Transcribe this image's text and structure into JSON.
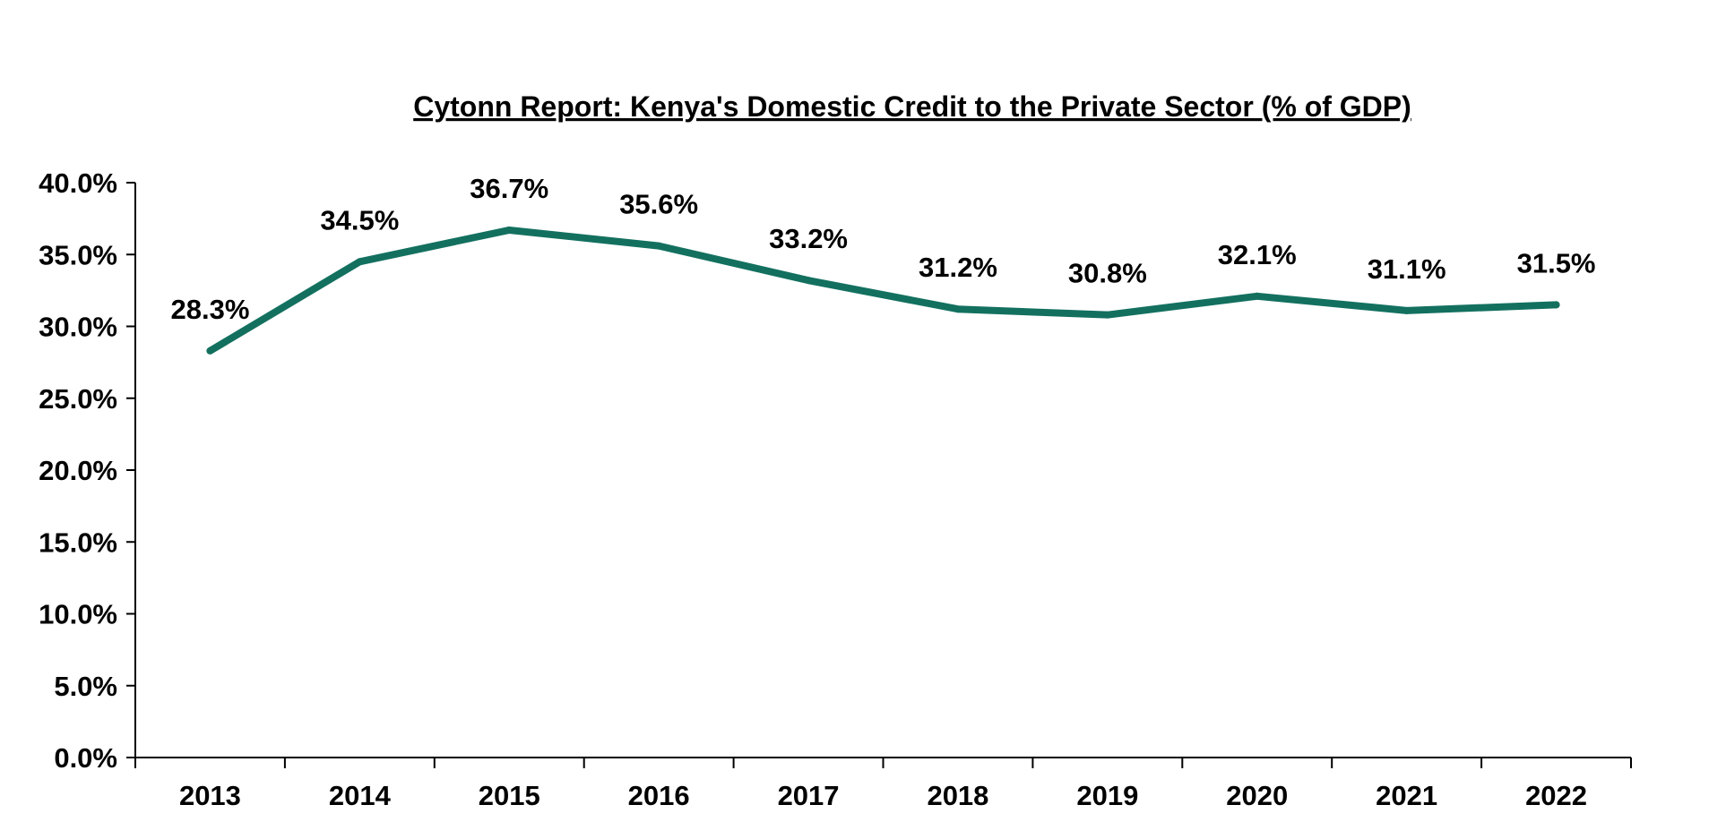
{
  "chart_data": {
    "type": "line",
    "title": "Cytonn Report: Kenya's Domestic Credit to the Private Sector (% of GDP)",
    "xlabel": "",
    "ylabel": "",
    "categories": [
      "2013",
      "2014",
      "2015",
      "2016",
      "2017",
      "2018",
      "2019",
      "2020",
      "2021",
      "2022"
    ],
    "series": [
      {
        "values": [
          28.3,
          34.5,
          36.7,
          35.6,
          33.2,
          31.2,
          30.8,
          32.1,
          31.1,
          31.5
        ],
        "labels": [
          "28.3%",
          "34.5%",
          "36.7%",
          "35.6%",
          "33.2%",
          "31.2%",
          "30.8%",
          "32.1%",
          "31.1%",
          "31.5%"
        ],
        "color": "#13705F"
      }
    ],
    "ylim": [
      0,
      40
    ],
    "yticks": [
      0,
      5,
      10,
      15,
      20,
      25,
      30,
      35,
      40
    ],
    "ytick_labels": [
      "0.0%",
      "5.0%",
      "10.0%",
      "15.0%",
      "20.0%",
      "25.0%",
      "30.0%",
      "35.0%",
      "40.0%"
    ],
    "grid": false,
    "legend": "none"
  }
}
